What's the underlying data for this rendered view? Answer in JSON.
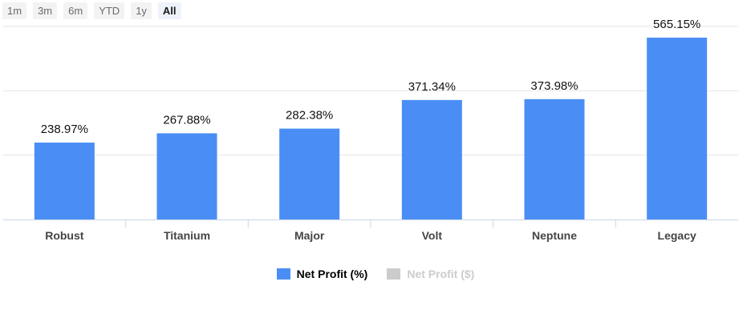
{
  "range_buttons": [
    {
      "label": "1m",
      "active": false
    },
    {
      "label": "3m",
      "active": false
    },
    {
      "label": "6m",
      "active": false
    },
    {
      "label": "YTD",
      "active": false
    },
    {
      "label": "1y",
      "active": false
    },
    {
      "label": "All",
      "active": true
    }
  ],
  "legend": [
    {
      "label": "Net Profit (%)",
      "color": "#4a8ef5",
      "enabled": true
    },
    {
      "label": "Net Profit ($)",
      "color": "#cccccc",
      "enabled": false
    }
  ],
  "chart_data": {
    "type": "bar",
    "title": "",
    "xlabel": "",
    "ylabel": "",
    "categories": [
      "Robust",
      "Titanium",
      "Major",
      "Volt",
      "Neptune",
      "Legacy"
    ],
    "series": [
      {
        "name": "Net Profit (%)",
        "values": [
          238.97,
          267.88,
          282.38,
          371.34,
          373.98,
          565.15
        ],
        "data_labels": [
          "238.97%",
          "267.88%",
          "282.38%",
          "371.34%",
          "373.98%",
          "565.15%"
        ]
      }
    ],
    "ylim": [
      0,
      600
    ],
    "grid": true,
    "gridlines": [
      0,
      200,
      400,
      600
    ],
    "bar_color": "#4a8ef5",
    "legend_position": "bottom"
  }
}
